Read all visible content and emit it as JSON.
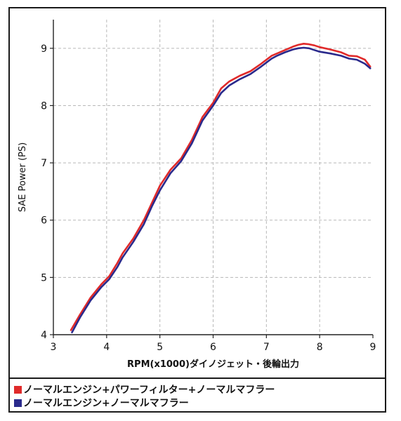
{
  "chart_data": {
    "type": "line",
    "title": "",
    "xlabel": "RPM(x1000)ダイノジェット・後輪出力",
    "ylabel": "SAE Power (PS)",
    "xlim": [
      3,
      9
    ],
    "ylim": [
      4,
      9.5
    ],
    "x_ticks": [
      "3",
      "4",
      "5",
      "6",
      "7",
      "8",
      "9"
    ],
    "y_ticks": [
      "4",
      "5",
      "6",
      "7",
      "8",
      "9"
    ],
    "grid": true,
    "legend_position": "bottom",
    "series": [
      {
        "name": "ノーマルエンジン+パワーフィルター+ノーマルマフラー",
        "color": "#e02a2a",
        "x": [
          3.33,
          3.5,
          3.7,
          3.9,
          4.05,
          4.2,
          4.3,
          4.5,
          4.7,
          4.85,
          5.0,
          5.2,
          5.4,
          5.6,
          5.8,
          6.0,
          6.15,
          6.3,
          6.5,
          6.7,
          6.9,
          7.0,
          7.1,
          7.2,
          7.35,
          7.5,
          7.6,
          7.7,
          7.8,
          7.9,
          8.0,
          8.2,
          8.4,
          8.55,
          8.7,
          8.85,
          8.95
        ],
        "y": [
          4.08,
          4.35,
          4.65,
          4.88,
          5.02,
          5.25,
          5.42,
          5.68,
          6.0,
          6.3,
          6.6,
          6.88,
          7.08,
          7.4,
          7.8,
          8.05,
          8.3,
          8.42,
          8.52,
          8.6,
          8.73,
          8.8,
          8.87,
          8.91,
          8.97,
          9.03,
          9.06,
          9.08,
          9.07,
          9.05,
          9.02,
          8.98,
          8.93,
          8.87,
          8.86,
          8.8,
          8.68
        ]
      },
      {
        "name": "ノーマルエンジン+ノーマルマフラー",
        "color": "#2a2a8c",
        "x": [
          3.35,
          3.5,
          3.7,
          3.9,
          4.05,
          4.2,
          4.3,
          4.5,
          4.7,
          4.85,
          5.0,
          5.2,
          5.4,
          5.6,
          5.8,
          6.0,
          6.15,
          6.3,
          6.5,
          6.7,
          6.9,
          7.0,
          7.1,
          7.2,
          7.35,
          7.5,
          7.6,
          7.7,
          7.8,
          7.9,
          8.0,
          8.2,
          8.4,
          8.55,
          8.7,
          8.85,
          8.95
        ],
        "y": [
          4.04,
          4.3,
          4.6,
          4.83,
          4.97,
          5.18,
          5.35,
          5.62,
          5.93,
          6.24,
          6.52,
          6.82,
          7.03,
          7.34,
          7.74,
          8.0,
          8.22,
          8.35,
          8.46,
          8.55,
          8.68,
          8.75,
          8.82,
          8.87,
          8.93,
          8.98,
          9.0,
          9.01,
          9.0,
          8.97,
          8.94,
          8.91,
          8.87,
          8.82,
          8.8,
          8.73,
          8.65
        ]
      }
    ]
  }
}
